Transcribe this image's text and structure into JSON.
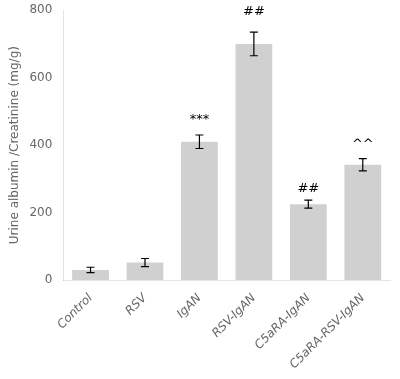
{
  "chart_data": {
    "type": "bar",
    "categories": [
      "Control",
      "RSV",
      "IgAN",
      "RSV-IgAN",
      "C5aRA-IgAN",
      "C5aRA-RSV-IgAN"
    ],
    "values": [
      30,
      52,
      410,
      700,
      225,
      342
    ],
    "errors": [
      8,
      12,
      20,
      35,
      12,
      18
    ],
    "color": "#d0d0d0",
    "ylabel": "Urine albumin /Creatinine (mg/g)",
    "ylim": [
      0,
      800
    ],
    "yticks": [
      0,
      200,
      400,
      600,
      800
    ],
    "grid": false,
    "annotations": [
      {
        "text": "***",
        "x": "IgAN",
        "y": 455
      },
      {
        "text": "##",
        "x": "RSV-IgAN",
        "y": 777
      },
      {
        "text": "##",
        "x": "C5aRA-IgAN",
        "y": 252
      },
      {
        "text": "^^",
        "x": "C5aRA-RSV-IgAN",
        "y": 382
      }
    ]
  }
}
